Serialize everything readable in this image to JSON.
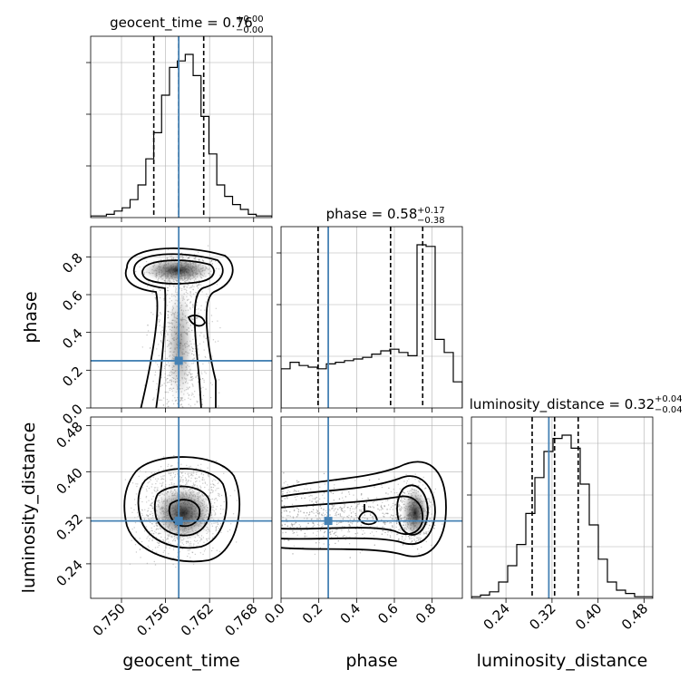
{
  "chart_data": {
    "type": "corner",
    "parameters": [
      {
        "key": "geocent_time",
        "label": "geocent_time",
        "title": "geocent_time = 0.76",
        "err_plus": "+0.00",
        "err_minus": "−0.00",
        "range": [
          0.7458,
          0.7705
        ],
        "ticks": [
          "0.750",
          "0.756",
          "0.762",
          "0.768"
        ],
        "tick_values": [
          0.75,
          0.756,
          0.762,
          0.768
        ],
        "quantiles": [
          0.7544,
          0.7578,
          0.7612
        ],
        "truth": 0.7578,
        "histogram": [
          1,
          1,
          2,
          4,
          6,
          11,
          20,
          36,
          52,
          75,
          92,
          96,
          100,
          87,
          62,
          39,
          20,
          13,
          8,
          5,
          2,
          1,
          1
        ]
      },
      {
        "key": "phase",
        "label": "phase",
        "title": "phase = 0.58",
        "err_plus": "+0.17",
        "err_minus": "−0.38",
        "range": [
          0.0,
          0.96
        ],
        "ticks": [
          "0.0",
          "0.2",
          "0.4",
          "0.6",
          "0.8"
        ],
        "tick_values": [
          0.0,
          0.2,
          0.4,
          0.6,
          0.8
        ],
        "quantiles": [
          0.196,
          0.58,
          0.75
        ],
        "truth": 0.25,
        "histogram": [
          24,
          28,
          26,
          25,
          24,
          27,
          28,
          29,
          30,
          31,
          33,
          35,
          36,
          34,
          32,
          100,
          99,
          42,
          34,
          16
        ]
      },
      {
        "key": "luminosity_distance",
        "label": "luminosity_distance",
        "title": "luminosity_distance = 0.32",
        "err_plus": "+0.04",
        "err_minus": "−0.04",
        "range": [
          0.18,
          0.495
        ],
        "ticks": [
          "0.24",
          "0.32",
          "0.40",
          "0.48"
        ],
        "tick_values": [
          0.24,
          0.32,
          0.4,
          0.48
        ],
        "quantiles": [
          0.2855,
          0.3245,
          0.3655
        ],
        "truth": 0.3145,
        "histogram": [
          1,
          2,
          4,
          10,
          20,
          33,
          52,
          74,
          90,
          98,
          100,
          92,
          70,
          45,
          24,
          10,
          5,
          3,
          1,
          1
        ]
      }
    ],
    "pairs": [
      {
        "x": "geocent_time",
        "y": "phase"
      },
      {
        "x": "geocent_time",
        "y": "luminosity_distance"
      },
      {
        "x": "phase",
        "y": "luminosity_distance"
      }
    ],
    "diagonal_y_tick_labels": "none",
    "grid": true,
    "colors": {
      "truth": "#4682b4",
      "hist": "#000000",
      "grid": "#b0b0b0",
      "scatter": "#9a9a9a"
    }
  }
}
